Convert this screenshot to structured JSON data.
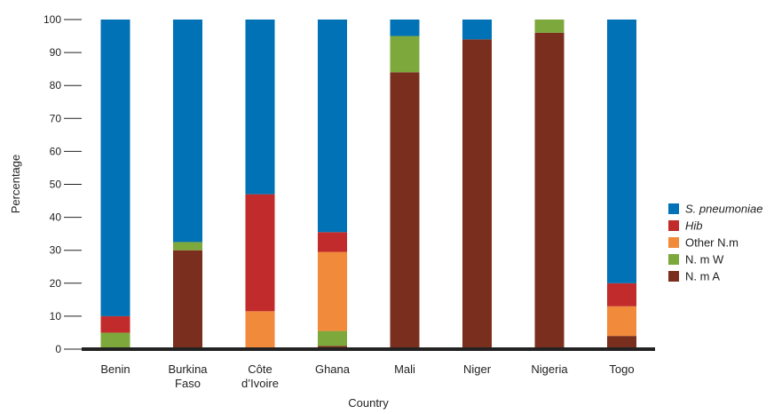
{
  "chart_data": {
    "type": "bar",
    "stacked": true,
    "xlabel": "Country",
    "ylabel": "Percentage",
    "ylim": [
      0,
      100
    ],
    "yticks": [
      0,
      10,
      20,
      30,
      40,
      50,
      60,
      70,
      80,
      90,
      100
    ],
    "categories": [
      [
        "Benin"
      ],
      [
        "Burkina",
        "Faso"
      ],
      [
        "Côte",
        "d’Ivoire"
      ],
      [
        "Ghana"
      ],
      [
        "Mali"
      ],
      [
        "Niger"
      ],
      [
        "Nigeria"
      ],
      [
        "Togo"
      ]
    ],
    "legend_position": "right",
    "series": [
      {
        "name": "N. m A",
        "color": "#7a2f1e",
        "italic": false,
        "values": [
          0.5,
          30,
          0,
          1,
          84,
          94,
          96,
          4
        ]
      },
      {
        "name": "N. m W",
        "color": "#7da83c",
        "italic": false,
        "values": [
          4.5,
          2.5,
          0,
          4.5,
          11,
          0,
          4,
          0
        ]
      },
      {
        "name": "Other N.m",
        "color": "#f28a3b",
        "italic": false,
        "values": [
          0,
          0,
          11.5,
          24,
          0,
          0,
          0,
          9
        ]
      },
      {
        "name": "Hib",
        "color": "#c12b2b",
        "italic": true,
        "values": [
          5,
          0,
          35.5,
          6,
          0,
          0,
          0,
          7
        ]
      },
      {
        "name": "S. pneumoniae",
        "color": "#0072b5",
        "italic": true,
        "values": [
          90,
          67.5,
          53,
          64.5,
          5,
          6,
          0,
          80
        ]
      }
    ]
  }
}
